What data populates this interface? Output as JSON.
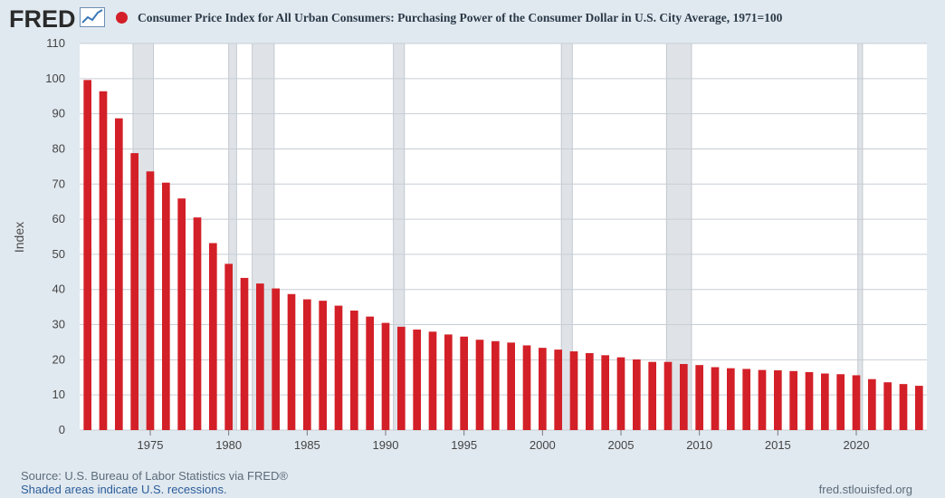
{
  "header": {
    "logo_text": "FRED",
    "title": "Consumer Price Index for All Urban Consumers: Purchasing Power of the Consumer Dollar in U.S. City Average, 1971=100"
  },
  "footer": {
    "source": "Source: U.S. Bureau of Labor Statistics via FRED®",
    "note": "Shaded areas indicate U.S. recessions.",
    "site": "fred.stlouisfed.org"
  },
  "colors": {
    "bar": "#d32028",
    "background": "#e1e9f0",
    "plot_background": "#ffffff",
    "grid": "#c7ced5",
    "recession": "#dfe3e8"
  },
  "chart_data": {
    "type": "bar",
    "title": "Consumer Price Index for All Urban Consumers: Purchasing Power of the Consumer Dollar in U.S. City Average, 1971=100",
    "xlabel": "",
    "ylabel": "Index",
    "ylim": [
      0,
      110
    ],
    "yticks": [
      0,
      10,
      20,
      30,
      40,
      50,
      60,
      70,
      80,
      90,
      100,
      110
    ],
    "xticks": [
      1975,
      1980,
      1985,
      1990,
      1995,
      2000,
      2005,
      2010,
      2015,
      2020
    ],
    "xlim": [
      1970.5,
      2024.5
    ],
    "grid": true,
    "legend": "top-left",
    "series": [
      {
        "name": "Consumer Price Index for All Urban Consumers: Purchasing Power of the Consumer Dollar in U.S. City Average, 1971=100",
        "x": [
          1971,
          1972,
          1973,
          1974,
          1975,
          1976,
          1977,
          1978,
          1979,
          1980,
          1981,
          1982,
          1983,
          1984,
          1985,
          1986,
          1987,
          1988,
          1989,
          1990,
          1991,
          1992,
          1993,
          1994,
          1995,
          1996,
          1997,
          1998,
          1999,
          2000,
          2001,
          2002,
          2003,
          2004,
          2005,
          2006,
          2007,
          2008,
          2009,
          2010,
          2011,
          2012,
          2013,
          2014,
          2015,
          2016,
          2017,
          2018,
          2019,
          2020,
          2021,
          2022,
          2023,
          2024
        ],
        "values": [
          99.6,
          96.4,
          88.7,
          78.8,
          73.6,
          70.4,
          65.9,
          60.5,
          53.2,
          47.3,
          43.3,
          41.7,
          40.3,
          38.7,
          37.2,
          36.8,
          35.4,
          34.0,
          32.3,
          30.5,
          29.4,
          28.6,
          28.0,
          27.2,
          26.6,
          25.7,
          25.3,
          24.9,
          24.1,
          23.4,
          22.9,
          22.4,
          21.9,
          21.3,
          20.7,
          20.1,
          19.4,
          19.4,
          18.8,
          18.5,
          17.9,
          17.6,
          17.4,
          17.1,
          17.0,
          16.8,
          16.5,
          16.1,
          15.9,
          15.6,
          14.5,
          13.6,
          13.1,
          12.6
        ]
      }
    ],
    "recessions": [
      [
        1973.9,
        1975.2
      ],
      [
        1980.0,
        1980.5
      ],
      [
        1981.5,
        1982.9
      ],
      [
        1990.5,
        1991.2
      ],
      [
        2001.2,
        2001.9
      ],
      [
        2007.9,
        2009.5
      ],
      [
        2020.1,
        2020.4
      ]
    ]
  }
}
